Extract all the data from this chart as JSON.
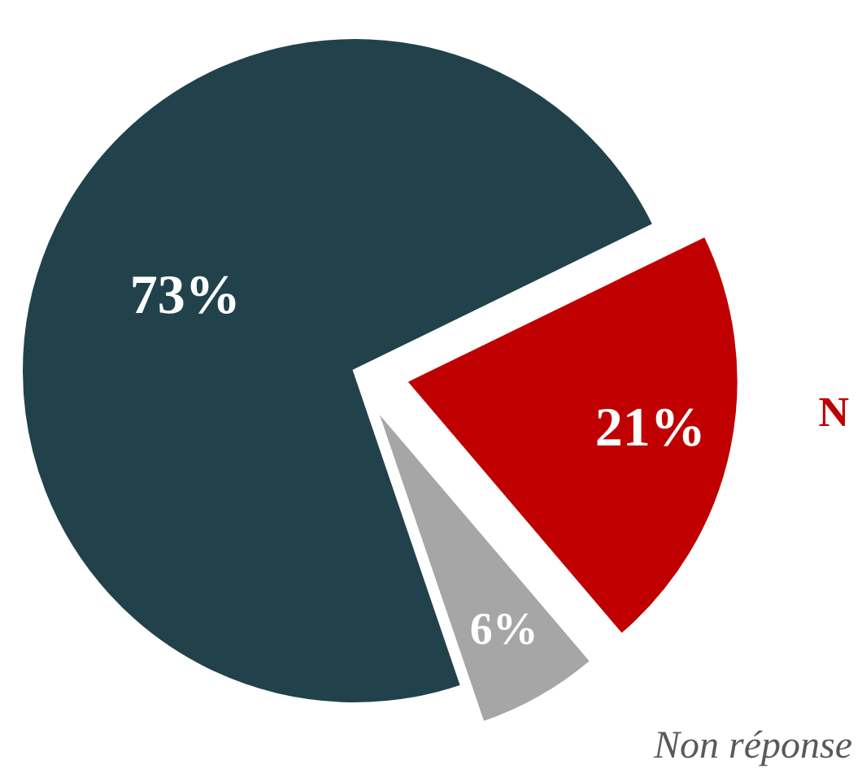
{
  "chart_data": {
    "type": "pie",
    "categories": [
      null,
      "N",
      "Non réponse"
    ],
    "values": [
      73,
      21,
      6
    ],
    "colors": [
      "#21424a",
      "#c00000",
      "#a6a6a6"
    ],
    "value_labels": [
      "73%",
      "21%",
      "6%"
    ]
  }
}
